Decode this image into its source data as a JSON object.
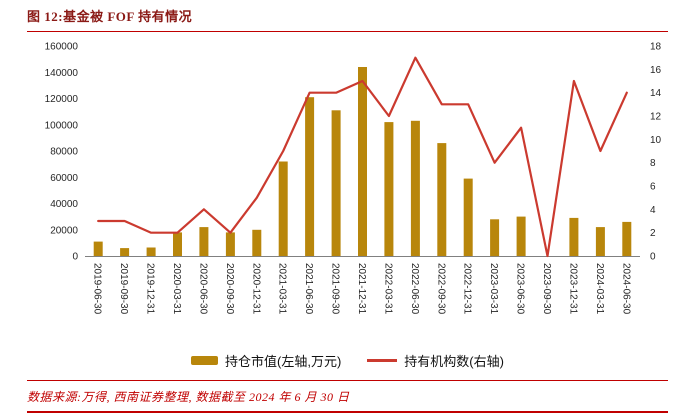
{
  "header": {
    "title": "图 12:基金被 FOF 持有情况"
  },
  "footer": {
    "source": "数据来源:万得, 西南证券整理, 数据截至 2024 年 6 月 30 日"
  },
  "colors": {
    "title_red": "#8B1A16",
    "rule_red": "#C00000",
    "source_red": "#C00000",
    "bar_gold": "#B8860B",
    "line_red": "#CB3A2F",
    "axis_text": "#262626",
    "axis_line": "#808080"
  },
  "chart_data": {
    "type": "bar",
    "title": "基金被FOF持有情况",
    "categories": [
      "2019-06-30",
      "2019-09-30",
      "2019-12-31",
      "2020-03-31",
      "2020-06-30",
      "2020-09-30",
      "2020-12-31",
      "2021-03-31",
      "2021-06-30",
      "2021-09-30",
      "2021-12-31",
      "2022-03-31",
      "2022-06-30",
      "2022-09-30",
      "2022-12-31",
      "2023-03-31",
      "2023-06-30",
      "2023-09-30",
      "2023-12-31",
      "2024-03-31",
      "2024-06-30"
    ],
    "series": [
      {
        "name": "持仓市值(左轴,万元)",
        "type": "bar",
        "axis": "left",
        "color": "#B8860B",
        "values": [
          11000,
          6000,
          6500,
          18000,
          22000,
          18000,
          20000,
          72000,
          121000,
          111000,
          144000,
          102000,
          103000,
          86000,
          59000,
          28000,
          30000,
          0,
          29000,
          22000,
          26000
        ]
      },
      {
        "name": "持有机构数(右轴)",
        "type": "line",
        "axis": "right",
        "color": "#CB3A2F",
        "values": [
          3,
          3,
          2,
          2,
          4,
          2,
          5,
          9,
          14,
          14,
          15,
          12,
          17,
          13,
          13,
          8,
          11,
          0,
          15,
          9,
          14
        ]
      }
    ],
    "left_axis": {
      "min": 0,
      "max": 160000,
      "step": 20000
    },
    "right_axis": {
      "min": 0,
      "max": 18,
      "step": 2
    },
    "grid": false,
    "legend_position": "bottom"
  }
}
